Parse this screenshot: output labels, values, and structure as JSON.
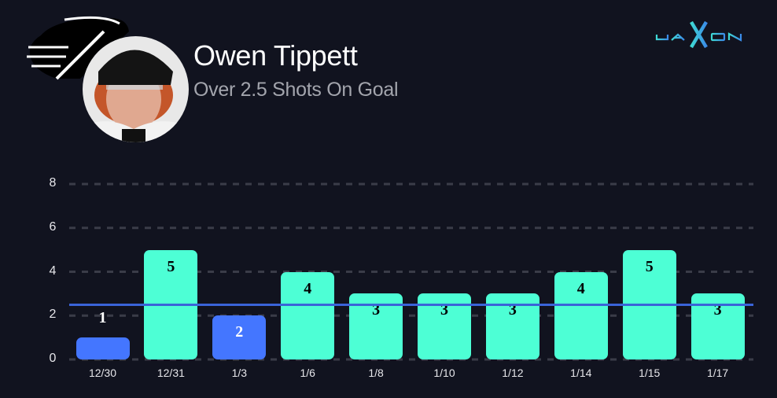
{
  "header": {
    "player_name": "Owen Tippett",
    "prop": "Over 2.5 Shots On Goal",
    "brand": "JAXON"
  },
  "icons": {
    "team_logo": "flyers-logo-icon",
    "player_photo": "player-headshot",
    "brand_logo": "jaxon-logo-icon"
  },
  "colors": {
    "background": "#11131f",
    "over": "#4dffd5",
    "under": "#4476ff",
    "line": "#3a64d8",
    "grid": "#3a3c48",
    "text": "#e6e6ea",
    "subtitle": "#a3a5ad"
  },
  "chart_data": {
    "type": "bar",
    "title": "Owen Tippett",
    "subtitle": "Over 2.5 Shots On Goal",
    "categories": [
      "12/30",
      "12/31",
      "1/3",
      "1/6",
      "1/8",
      "1/10",
      "1/12",
      "1/14",
      "1/15",
      "1/17"
    ],
    "values": [
      1,
      5,
      2,
      4,
      3,
      3,
      3,
      4,
      5,
      3
    ],
    "threshold": 2.5,
    "xlabel": "",
    "ylabel": "",
    "ylim": [
      0,
      8
    ],
    "yticks": [
      0,
      2,
      4,
      6,
      8
    ],
    "grid": true,
    "legend": "none"
  }
}
